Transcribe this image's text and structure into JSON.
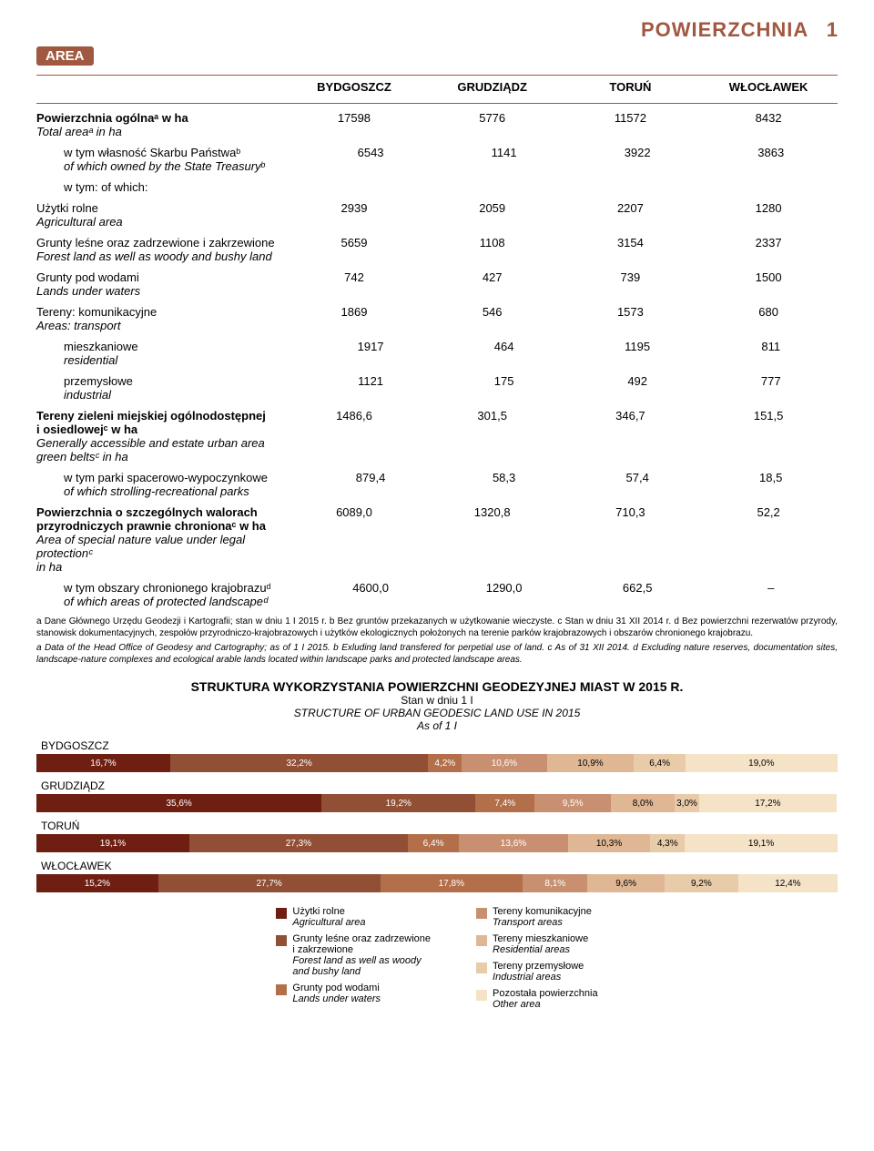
{
  "header": {
    "area_label": "AREA",
    "title": "POWIERZCHNIA",
    "number": "1"
  },
  "columns": [
    "BYDGOSZCZ",
    "GRUDZIĄDZ",
    "TORUŃ",
    "WŁOCŁAWEK"
  ],
  "rows": [
    {
      "label": "Powierzchnia ogólnaᵃ w ha",
      "sub": "Total areaᵃ in ha",
      "vals": [
        "17598",
        "5776",
        "11572",
        "8432"
      ],
      "bold": true
    },
    {
      "label": "w tym własność Skarbu Państwaᵇ",
      "sub": "of which owned by the State Treasuryᵇ",
      "vals": [
        "6543",
        "1141",
        "3922",
        "3863"
      ],
      "indent": true
    },
    {
      "label": "w tym:    of which:",
      "vals": [
        "",
        "",
        "",
        ""
      ],
      "indent": true
    },
    {
      "label": "Użytki rolne",
      "sub": "Agricultural area",
      "vals": [
        "2939",
        "2059",
        "2207",
        "1280"
      ]
    },
    {
      "label": "Grunty leśne oraz zadrzewione i zakrzewione",
      "sub": "Forest land as well as woody and bushy land",
      "vals": [
        "5659",
        "1108",
        "3154",
        "2337"
      ]
    },
    {
      "label": "Grunty pod wodami",
      "sub": "Lands under waters",
      "vals": [
        "742",
        "427",
        "739",
        "1500"
      ]
    },
    {
      "label": "Tereny: komunikacyjne",
      "sub": "Areas:  transport",
      "vals": [
        "1869",
        "546",
        "1573",
        "680"
      ]
    },
    {
      "label": "mieszkaniowe",
      "sub": "residential",
      "vals": [
        "1917",
        "464",
        "1195",
        "811"
      ],
      "indent": true
    },
    {
      "label": "przemysłowe",
      "sub": "industrial",
      "vals": [
        "1121",
        "175",
        "492",
        "777"
      ],
      "indent": true
    },
    {
      "label": "Tereny zieleni miejskiej ogólnodostępnej\n  i osiedlowejᶜ w ha",
      "sub": "Generally accessible and estate urban area green beltsᶜ in ha",
      "vals": [
        "1486,6",
        "301,5",
        "346,7",
        "151,5"
      ],
      "bold": true
    },
    {
      "label": "w tym parki spacerowo-wypoczynkowe",
      "sub": "of which strolling-recreational parks",
      "vals": [
        "879,4",
        "58,3",
        "57,4",
        "18,5"
      ],
      "indent": true
    },
    {
      "label": "Powierzchnia o szczególnych walorach\n  przyrodniczych prawnie chronionaᶜ w ha",
      "sub": "Area of special nature value under legal protectionᶜ\n  in ha",
      "vals": [
        "6089,0",
        "1320,8",
        "710,3",
        "52,2"
      ],
      "bold": true
    },
    {
      "label": "w tym obszary chronionego krajobrazuᵈ",
      "sub": "of which areas of protected landscapeᵈ",
      "vals": [
        "4600,0",
        "1290,0",
        "662,5",
        "–"
      ],
      "indent": true
    }
  ],
  "footnotes": {
    "pl": "a Dane Głównego Urzędu Geodezji i Kartografii; stan w dniu 1 I 2015 r.  b Bez gruntów przekazanych w użytkowanie wieczyste.  c Stan w dniu 31 XII 2014 r.  d Bez powierzchni rezerwatów przyrody, stanowisk dokumentacyjnych, zespołów przyrodniczo-krajobrazowych i użytków ekologicznych położonych na terenie parków krajobrazowych i obszarów chronionego krajobrazu.",
    "en": "a Data of the Head Office of Geodesy and Cartography; as of 1 I 2015.  b Exluding land transfered for perpetial use of land.  c As of 31 XII 2014.  d Excluding nature reserves, documentation sites, landscape-nature complexes and ecological arable lands located within landscape parks and protected landscape areas."
  },
  "chart": {
    "title": "STRUKTURA WYKORZYSTANIA POWIERZCHNI GEODEZYJNEJ MIAST W 2015 R.",
    "sub1": "Stan w dniu 1 I",
    "sub2": "STRUCTURE OF URBAN GEODESIC LAND USE IN 2015",
    "sub3": "As of 1 I",
    "colors": [
      "#6e1f12",
      "#915036",
      "#b26f4a",
      "#c89070",
      "#e0b795",
      "#e8cba9",
      "#f5e3c8"
    ],
    "text_colors": [
      "#fff",
      "#fff",
      "#fff",
      "#fff",
      "#000",
      "#000",
      "#000"
    ],
    "cities": [
      {
        "name": "BYDGOSZCZ",
        "segs": [
          16.7,
          32.2,
          4.2,
          10.6,
          10.9,
          6.4,
          19.0
        ]
      },
      {
        "name": "GRUDZIĄDZ",
        "segs": [
          35.6,
          19.2,
          7.4,
          9.5,
          8.0,
          3.0,
          17.2
        ]
      },
      {
        "name": "TORUŃ",
        "segs": [
          19.1,
          27.3,
          6.4,
          13.6,
          10.3,
          4.3,
          19.1
        ]
      },
      {
        "name": "WŁOCŁAWEK",
        "segs": [
          15.2,
          27.7,
          17.8,
          8.1,
          9.6,
          9.2,
          12.4
        ]
      }
    ]
  },
  "legend": {
    "left": [
      {
        "pl": "Użytki rolne",
        "en": "Agricultural area",
        "color": "#6e1f12"
      },
      {
        "pl": "Grunty leśne oraz zadrzewione\n  i zakrzewione",
        "en": "Forest land as well as woody\n  and bushy land",
        "color": "#915036"
      },
      {
        "pl": "Grunty pod wodami",
        "en": "Lands under waters",
        "color": "#b26f4a"
      }
    ],
    "right": [
      {
        "pl": "Tereny komunikacyjne",
        "en": "Transport areas",
        "color": "#c89070"
      },
      {
        "pl": "Tereny mieszkaniowe",
        "en": "Residential areas",
        "color": "#e0b795"
      },
      {
        "pl": "Tereny przemysłowe",
        "en": "Industrial areas",
        "color": "#e8cba9"
      },
      {
        "pl": "Pozostała powierzchnia",
        "en": "Other area",
        "color": "#f5e3c8"
      }
    ]
  }
}
